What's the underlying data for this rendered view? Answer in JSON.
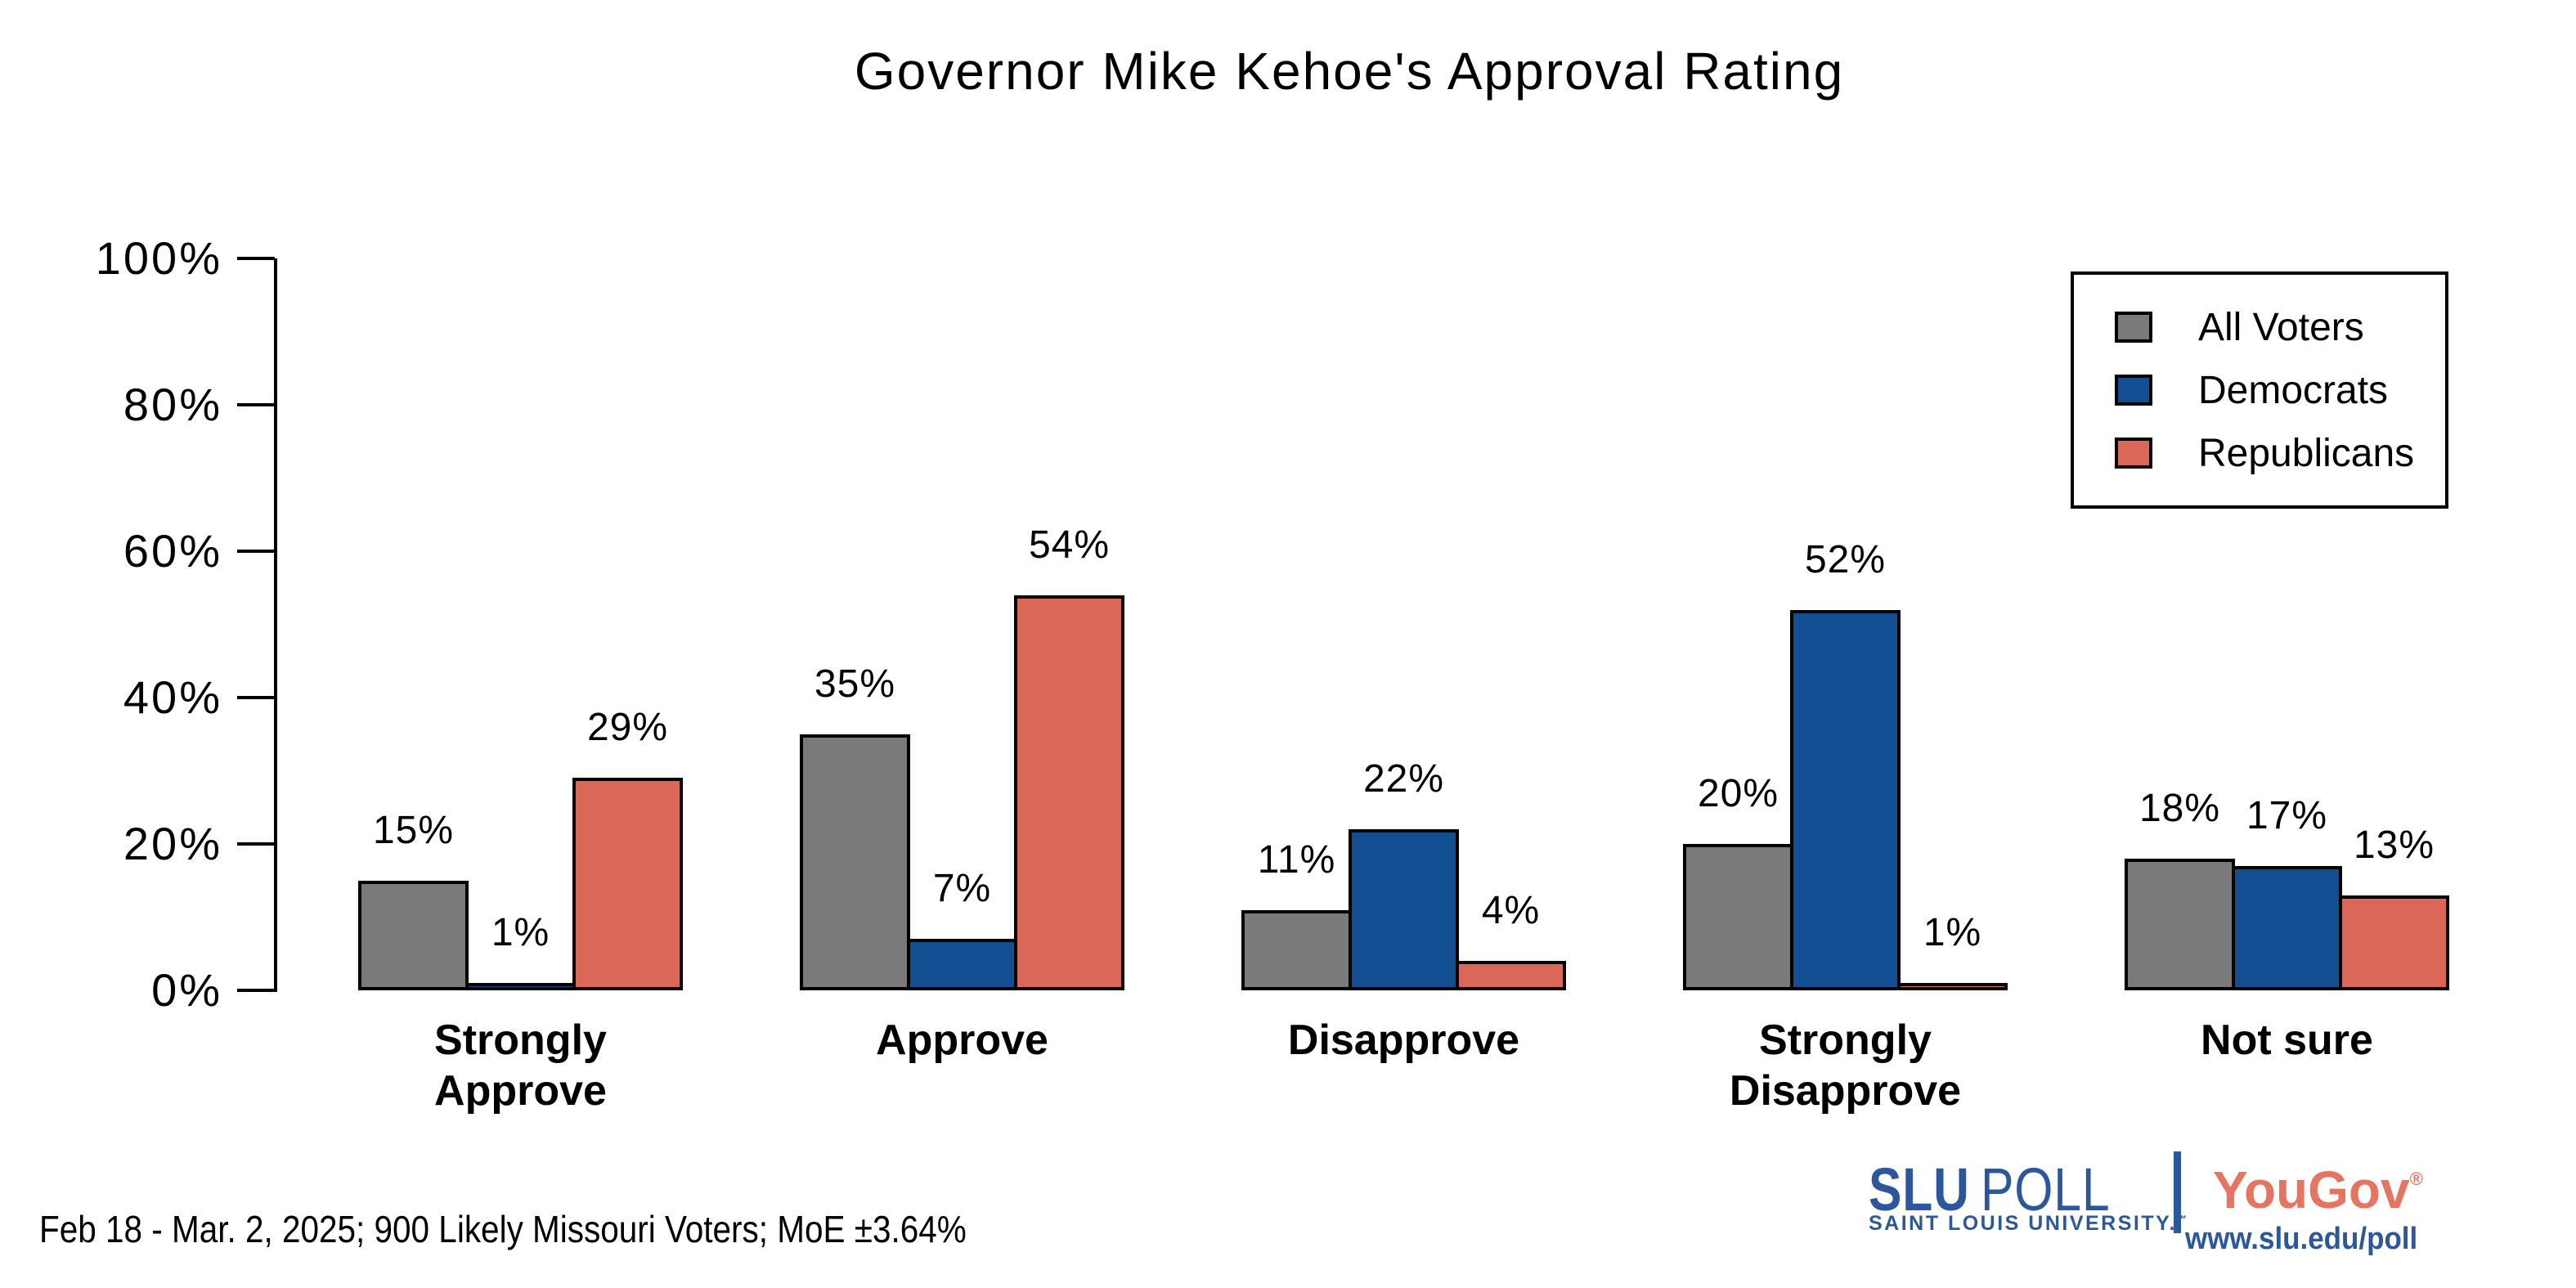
{
  "chart_data": {
    "type": "bar",
    "title": "Governor Mike Kehoe's Approval Rating",
    "categories": [
      "Strongly Approve",
      "Approve",
      "Disapprove",
      "Strongly Disapprove",
      "Not sure"
    ],
    "series": [
      {
        "name": "All Voters",
        "color": "#7A7A7A",
        "values": [
          15,
          35,
          11,
          20,
          18
        ]
      },
      {
        "name": "Democrats",
        "color": "#114E92",
        "values": [
          1,
          7,
          22,
          52,
          17
        ]
      },
      {
        "name": "Republicans",
        "color": "#DB6758",
        "values": [
          29,
          54,
          4,
          1,
          13
        ]
      }
    ],
    "value_label_format": "{v}%",
    "xlabel": "",
    "ylabel": "",
    "ylim": [
      0,
      100
    ],
    "yticks": [
      {
        "value": 0,
        "label": "0%"
      },
      {
        "value": 20,
        "label": "20%"
      },
      {
        "value": 40,
        "label": "40%"
      },
      {
        "value": 60,
        "label": "60%"
      },
      {
        "value": 80,
        "label": "80%"
      },
      {
        "value": 100,
        "label": "100%"
      }
    ],
    "grid": false,
    "legend_position": "top-right",
    "bar_outline_color": "#000000",
    "background_color": "#FFFFFF"
  },
  "footnote": "Feb 18 - Mar. 2, 2025; 900 Likely Missouri Voters; MoE ±3.64%",
  "branding": {
    "slu_poll_primary": "SLU",
    "slu_poll_secondary": "POLL",
    "slu_university": "SAINT LOUIS UNIVERSITY.",
    "slu_trademark": "™",
    "yougov": "YouGov",
    "yougov_registered": "®",
    "url": "www.slu.edu/poll",
    "slu_blue": "#2A579D",
    "yougov_coral": "#E8745F"
  }
}
